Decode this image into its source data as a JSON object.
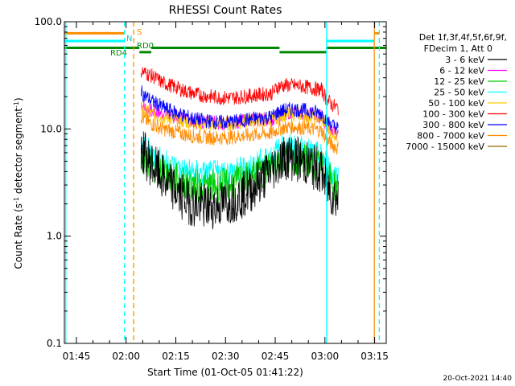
{
  "chart_data": {
    "type": "line",
    "title": "RHESSI Count Rates",
    "xlabel": "Start Time (01-Oct-05 01:41:22)",
    "ylabel_pre": "Count Rate (s",
    "ylabel_sup1": "-1",
    "ylabel_mid": " detector segment",
    "ylabel_sup2": "-1",
    "ylabel_post": ")",
    "y_scale": "log",
    "ylim": [
      0.1,
      100
    ],
    "y_ticks": [
      {
        "value": 0.1,
        "label": "0.1"
      },
      {
        "value": 1,
        "label": "1.0"
      },
      {
        "value": 10,
        "label": "10.0"
      },
      {
        "value": 100,
        "label": "100.0"
      }
    ],
    "xlim_minutes": [
      101.37,
      198.5
    ],
    "x_ticks": [
      {
        "value": 105,
        "label": "01:45"
      },
      {
        "value": 120,
        "label": "02:00"
      },
      {
        "value": 135,
        "label": "02:15"
      },
      {
        "value": 150,
        "label": "02:30"
      },
      {
        "value": 165,
        "label": "02:45"
      },
      {
        "value": 180,
        "label": "03:00"
      },
      {
        "value": 195,
        "label": "03:15"
      }
    ],
    "legend": {
      "header1": "Det 1f,3f,4f,5f,6f,9f,",
      "header2": "FDecim 1, Att 0",
      "placement": "right"
    },
    "series": [
      {
        "name": "3 - 6 keV",
        "color": "#000000",
        "x": [
          124.5,
          126,
          128,
          131,
          134,
          137,
          140,
          143,
          146,
          149,
          152,
          155,
          158,
          161,
          164,
          166,
          168,
          170,
          173,
          176,
          179,
          180.5,
          182,
          184
        ],
        "y": [
          6.5,
          5.5,
          4.5,
          3.5,
          2.8,
          2.3,
          2.0,
          1.9,
          1.9,
          2.0,
          2.2,
          2.4,
          2.8,
          3.4,
          4.2,
          5.0,
          5.5,
          5.4,
          5.0,
          4.5,
          4.0,
          3.0,
          2.5,
          2.2
        ]
      },
      {
        "name": "6 - 12 keV",
        "color": "#ff00ff",
        "x": [
          124.5,
          126,
          128,
          131,
          134,
          137,
          140,
          143,
          146,
          149,
          152,
          155,
          158,
          161,
          164,
          166,
          168,
          170,
          173,
          176,
          179,
          180.5,
          182,
          184
        ],
        "y": [
          17,
          15.5,
          14.5,
          14,
          13.2,
          12.5,
          12.0,
          11.6,
          11.4,
          11.3,
          11.5,
          11.8,
          12.0,
          12.2,
          12.3,
          13.5,
          14.0,
          14.2,
          14.0,
          13.6,
          13.0,
          11.0,
          10.0,
          9.0
        ]
      },
      {
        "name": "12 - 25 keV",
        "color": "#00cc00",
        "x": [
          124.5,
          126,
          128,
          131,
          134,
          137,
          140,
          143,
          146,
          149,
          152,
          155,
          158,
          161,
          164,
          166,
          168,
          170,
          173,
          176,
          179,
          180.5,
          182,
          184
        ],
        "y": [
          5.5,
          5.0,
          4.5,
          4.0,
          3.5,
          3.2,
          3.0,
          2.9,
          2.9,
          3.0,
          3.1,
          3.3,
          3.6,
          4.0,
          4.6,
          5.2,
          5.6,
          5.5,
          5.2,
          4.8,
          4.4,
          3.8,
          3.2,
          2.8
        ]
      },
      {
        "name": "25 - 50 keV",
        "color": "#00ffff",
        "x": [
          124.5,
          126,
          128,
          131,
          134,
          137,
          140,
          143,
          146,
          149,
          152,
          155,
          158,
          161,
          164,
          166,
          168,
          170,
          173,
          176,
          179,
          180.5,
          182,
          184
        ],
        "y": [
          7.2,
          6.4,
          5.7,
          5.0,
          4.5,
          4.1,
          3.9,
          3.8,
          3.8,
          3.9,
          4.0,
          4.2,
          4.5,
          5.0,
          5.6,
          6.3,
          6.8,
          6.7,
          6.4,
          6.0,
          5.5,
          4.8,
          4.0,
          3.5
        ]
      },
      {
        "name": "50 - 100 keV",
        "color": "#ffcc00",
        "x": [
          124.5,
          126,
          128,
          131,
          134,
          137,
          140,
          143,
          146,
          149,
          152,
          155,
          158,
          161,
          164,
          166,
          168,
          170,
          173,
          176,
          179,
          180.5,
          182,
          184
        ],
        "y": [
          15.5,
          14.5,
          13.5,
          13.0,
          12.3,
          11.8,
          11.5,
          11.2,
          11.1,
          11.1,
          11.3,
          11.6,
          11.9,
          12.1,
          12.2,
          13.2,
          13.6,
          13.8,
          13.6,
          13.2,
          12.6,
          10.5,
          9.5,
          8.5
        ]
      },
      {
        "name": "100 - 300 keV",
        "color": "#ff0000",
        "x": [
          124.5,
          126,
          128,
          131,
          134,
          137,
          140,
          143,
          146,
          149,
          152,
          155,
          158,
          161,
          164,
          166,
          168,
          170,
          173,
          176,
          179,
          180.5,
          182,
          184
        ],
        "y": [
          35,
          33,
          31,
          27,
          25,
          23,
          21.5,
          20.5,
          20,
          19.5,
          19.5,
          20,
          20.5,
          21,
          21.5,
          25,
          25.5,
          25.5,
          25,
          24,
          23,
          19,
          17,
          15.5
        ]
      },
      {
        "name": "300 - 800 keV",
        "color": "#0000ff",
        "x": [
          124.5,
          126,
          128,
          131,
          134,
          137,
          140,
          143,
          146,
          149,
          152,
          155,
          158,
          161,
          164,
          166,
          168,
          170,
          173,
          176,
          179,
          180.5,
          182,
          184
        ],
        "y": [
          22,
          20,
          18,
          16,
          14.5,
          13.5,
          12.5,
          12.0,
          11.7,
          11.5,
          11.7,
          12.0,
          12.4,
          12.7,
          13.0,
          14.5,
          15.0,
          15.3,
          15.0,
          14.5,
          14.0,
          12.0,
          11.0,
          10.0
        ]
      },
      {
        "name": "800 - 7000 keV",
        "color": "#ff8c00",
        "x": [
          124.5,
          126,
          128,
          131,
          134,
          137,
          140,
          143,
          146,
          149,
          152,
          155,
          158,
          161,
          164,
          166,
          168,
          170,
          173,
          176,
          179,
          180.5,
          182,
          184
        ],
        "y": [
          13,
          12,
          11,
          10,
          9.5,
          9.0,
          8.6,
          8.4,
          8.3,
          8.3,
          8.4,
          8.6,
          8.8,
          9.0,
          9.1,
          10.0,
          10.3,
          10.5,
          10.3,
          10.0,
          9.6,
          8.0,
          7.2,
          6.5
        ]
      },
      {
        "name": "7000 - 15000 keV",
        "color": "#996600",
        "x": [],
        "y": []
      }
    ],
    "segments": [
      {
        "label": "S",
        "color": "#ff8c00",
        "y": 78,
        "x_ranges": [
          [
            101.37,
            119.5
          ],
          [
            194.9,
            196.5
          ]
        ]
      },
      {
        "label": "N",
        "color": "#00ffff",
        "y": 66,
        "x_ranges": [
          [
            101.37,
            119.5
          ],
          [
            180.5,
            194.9
          ]
        ]
      },
      {
        "label": "RD4",
        "color": "#008800",
        "y": 57,
        "x_ranges": [
          [
            101.37,
            124.0
          ]
        ]
      },
      {
        "label": "RD0",
        "color": "#008800",
        "y": 52,
        "x_ranges": [
          [
            124.0,
            127.6
          ],
          [
            166.3,
            180.5
          ]
        ]
      },
      {
        "label": "",
        "color": "#008800",
        "y": 57,
        "x_ranges": [
          [
            127.6,
            166.3
          ],
          [
            180.5,
            198.5
          ]
        ]
      }
    ],
    "vlines": [
      {
        "x": 101.8,
        "color": "#00ffff",
        "dash": false
      },
      {
        "x": 119.5,
        "color": "#00ffff",
        "dash": true
      },
      {
        "x": 122.3,
        "color": "#ff8c00",
        "dash": true
      },
      {
        "x": 180.5,
        "color": "#00ffff",
        "dash": false
      },
      {
        "x": 194.9,
        "color": "#ff8c00",
        "dash": false
      },
      {
        "x": 196.4,
        "color": "#00ffff",
        "dash": true
      }
    ]
  },
  "timestamp": "20-Oct-2021 14:40"
}
